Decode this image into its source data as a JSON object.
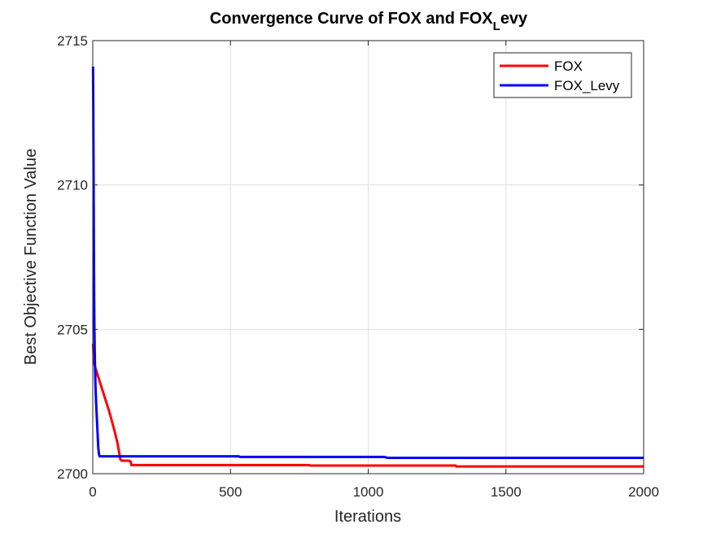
{
  "chart_data": {
    "type": "line",
    "title": "Convergence Curve of FOX and FOX",
    "title_subscript": "L",
    "title_suffix": "evy",
    "xlabel": "Iterations",
    "ylabel": "Best Objective Function Value",
    "xlim": [
      0,
      2000
    ],
    "ylim": [
      2700,
      2715
    ],
    "xticks": [
      0,
      500,
      1000,
      1500,
      2000
    ],
    "xtick_labels": [
      "0",
      "500",
      "1000",
      "1500",
      "2000"
    ],
    "yticks": [
      2700,
      2705,
      2710,
      2715
    ],
    "ytick_labels": [
      "2700",
      "2705",
      "2710",
      "2715"
    ],
    "grid": true,
    "legend_position": "top-right",
    "series": [
      {
        "name": "FOX",
        "color": "#ff0000",
        "x": [
          1,
          3,
          6,
          10,
          20,
          30,
          40,
          50,
          60,
          70,
          80,
          90,
          100,
          105,
          108,
          110,
          120,
          130,
          138,
          140,
          300,
          500,
          785,
          790,
          1000,
          1318,
          1320,
          1600,
          2000
        ],
        "y": [
          2704.5,
          2704.1,
          2703.8,
          2703.65,
          2703.35,
          2703.05,
          2702.75,
          2702.45,
          2702.15,
          2701.8,
          2701.45,
          2701.05,
          2700.5,
          2700.45,
          2700.45,
          2700.45,
          2700.45,
          2700.45,
          2700.42,
          2700.3,
          2700.3,
          2700.3,
          2700.3,
          2700.28,
          2700.28,
          2700.28,
          2700.25,
          2700.25,
          2700.25
        ]
      },
      {
        "name": "FOX_Levy",
        "color": "#0000ff",
        "x": [
          1,
          2,
          3,
          4,
          5,
          6,
          7,
          8,
          10,
          12,
          15,
          18,
          20,
          23,
          25,
          30,
          100,
          300,
          530,
          535,
          800,
          1060,
          1065,
          1070,
          1500,
          2000
        ],
        "y": [
          2714.1,
          2712.5,
          2710.2,
          2708.0,
          2706.2,
          2705.0,
          2704.3,
          2703.8,
          2703.0,
          2702.5,
          2701.9,
          2701.3,
          2700.9,
          2700.65,
          2700.6,
          2700.6,
          2700.6,
          2700.6,
          2700.6,
          2700.58,
          2700.58,
          2700.58,
          2700.56,
          2700.55,
          2700.55,
          2700.55
        ]
      }
    ]
  }
}
